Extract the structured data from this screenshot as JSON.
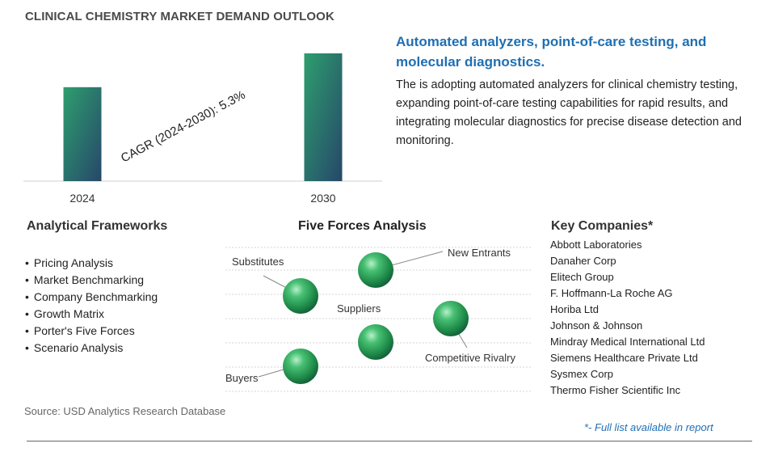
{
  "title": "CLINICAL CHEMISTRY MARKET DEMAND OUTLOOK",
  "chart_data": {
    "type": "bar",
    "categories": [
      "2024",
      "2030"
    ],
    "values": [
      1.0,
      1.36
    ],
    "annotation": "CAGR (2024-2030):   5.3%",
    "bar_gradient": [
      "#2e9e6e",
      "#26476a"
    ]
  },
  "headline": "Automated analyzers, point-of-care testing, and molecular diagnostics.",
  "description": "The is adopting automated analyzers for clinical chemistry testing, expanding point-of-care testing capabilities for rapid results, and integrating molecular diagnostics for precise disease detection and monitoring.",
  "frameworks": {
    "heading": "Analytical Frameworks",
    "items": [
      "Pricing Analysis",
      "Market Benchmarking",
      "Company Benchmarking",
      "Growth Matrix",
      "Porter's Five Forces",
      "Scenario Analysis"
    ]
  },
  "five_forces": {
    "heading": "Five Forces Analysis",
    "labels": {
      "substitutes": "Substitutes",
      "new_entrants": "New Entrants",
      "suppliers": "Suppliers",
      "competitive_rivalry": "Competitive Rivalry",
      "buyers": "Buyers"
    },
    "sphere_color": "#2eaa5e"
  },
  "key_companies": {
    "heading": "Key Companies*",
    "items": [
      "Abbott Laboratories",
      "Danaher Corp",
      "Elitech Group",
      "F. Hoffmann-La Roche AG",
      "Horiba Ltd",
      "Johnson & Johnson",
      "Mindray Medical International Ltd",
      "Siemens Healthcare Private Ltd",
      "Sysmex Corp",
      "Thermo Fisher Scientific Inc"
    ]
  },
  "source": "Source: USD Analytics Research Database",
  "footnote": "*- Full list available in report"
}
